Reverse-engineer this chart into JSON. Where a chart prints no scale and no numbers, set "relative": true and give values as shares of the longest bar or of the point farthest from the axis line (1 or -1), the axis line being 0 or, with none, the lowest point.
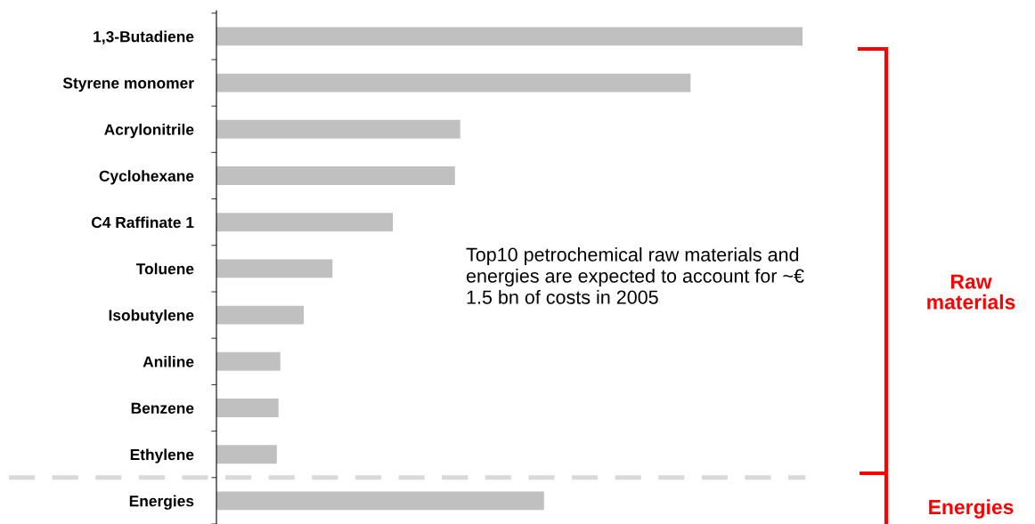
{
  "chart_data": {
    "type": "bar",
    "orientation": "horizontal",
    "relative": true,
    "categories": [
      "1,3-Butadiene",
      "Styrene monomer",
      "Acrylonitrile",
      "Cyclohexane",
      "C4 Raffinate 1",
      "Toluene",
      "Isobutylene",
      "Aniline",
      "Benzene",
      "Ethylene",
      "Energies"
    ],
    "values": [
      1.0,
      0.809,
      0.416,
      0.407,
      0.301,
      0.198,
      0.149,
      0.109,
      0.106,
      0.103,
      0.559
    ],
    "color": "#c0c0c0",
    "annotations": [
      "Top10 petrochemical raw materials and energies are expected to account for ~€ 1.5 bn of costs in 2005",
      "Raw materials",
      "Energies"
    ],
    "grid": false,
    "legend": false
  }
}
